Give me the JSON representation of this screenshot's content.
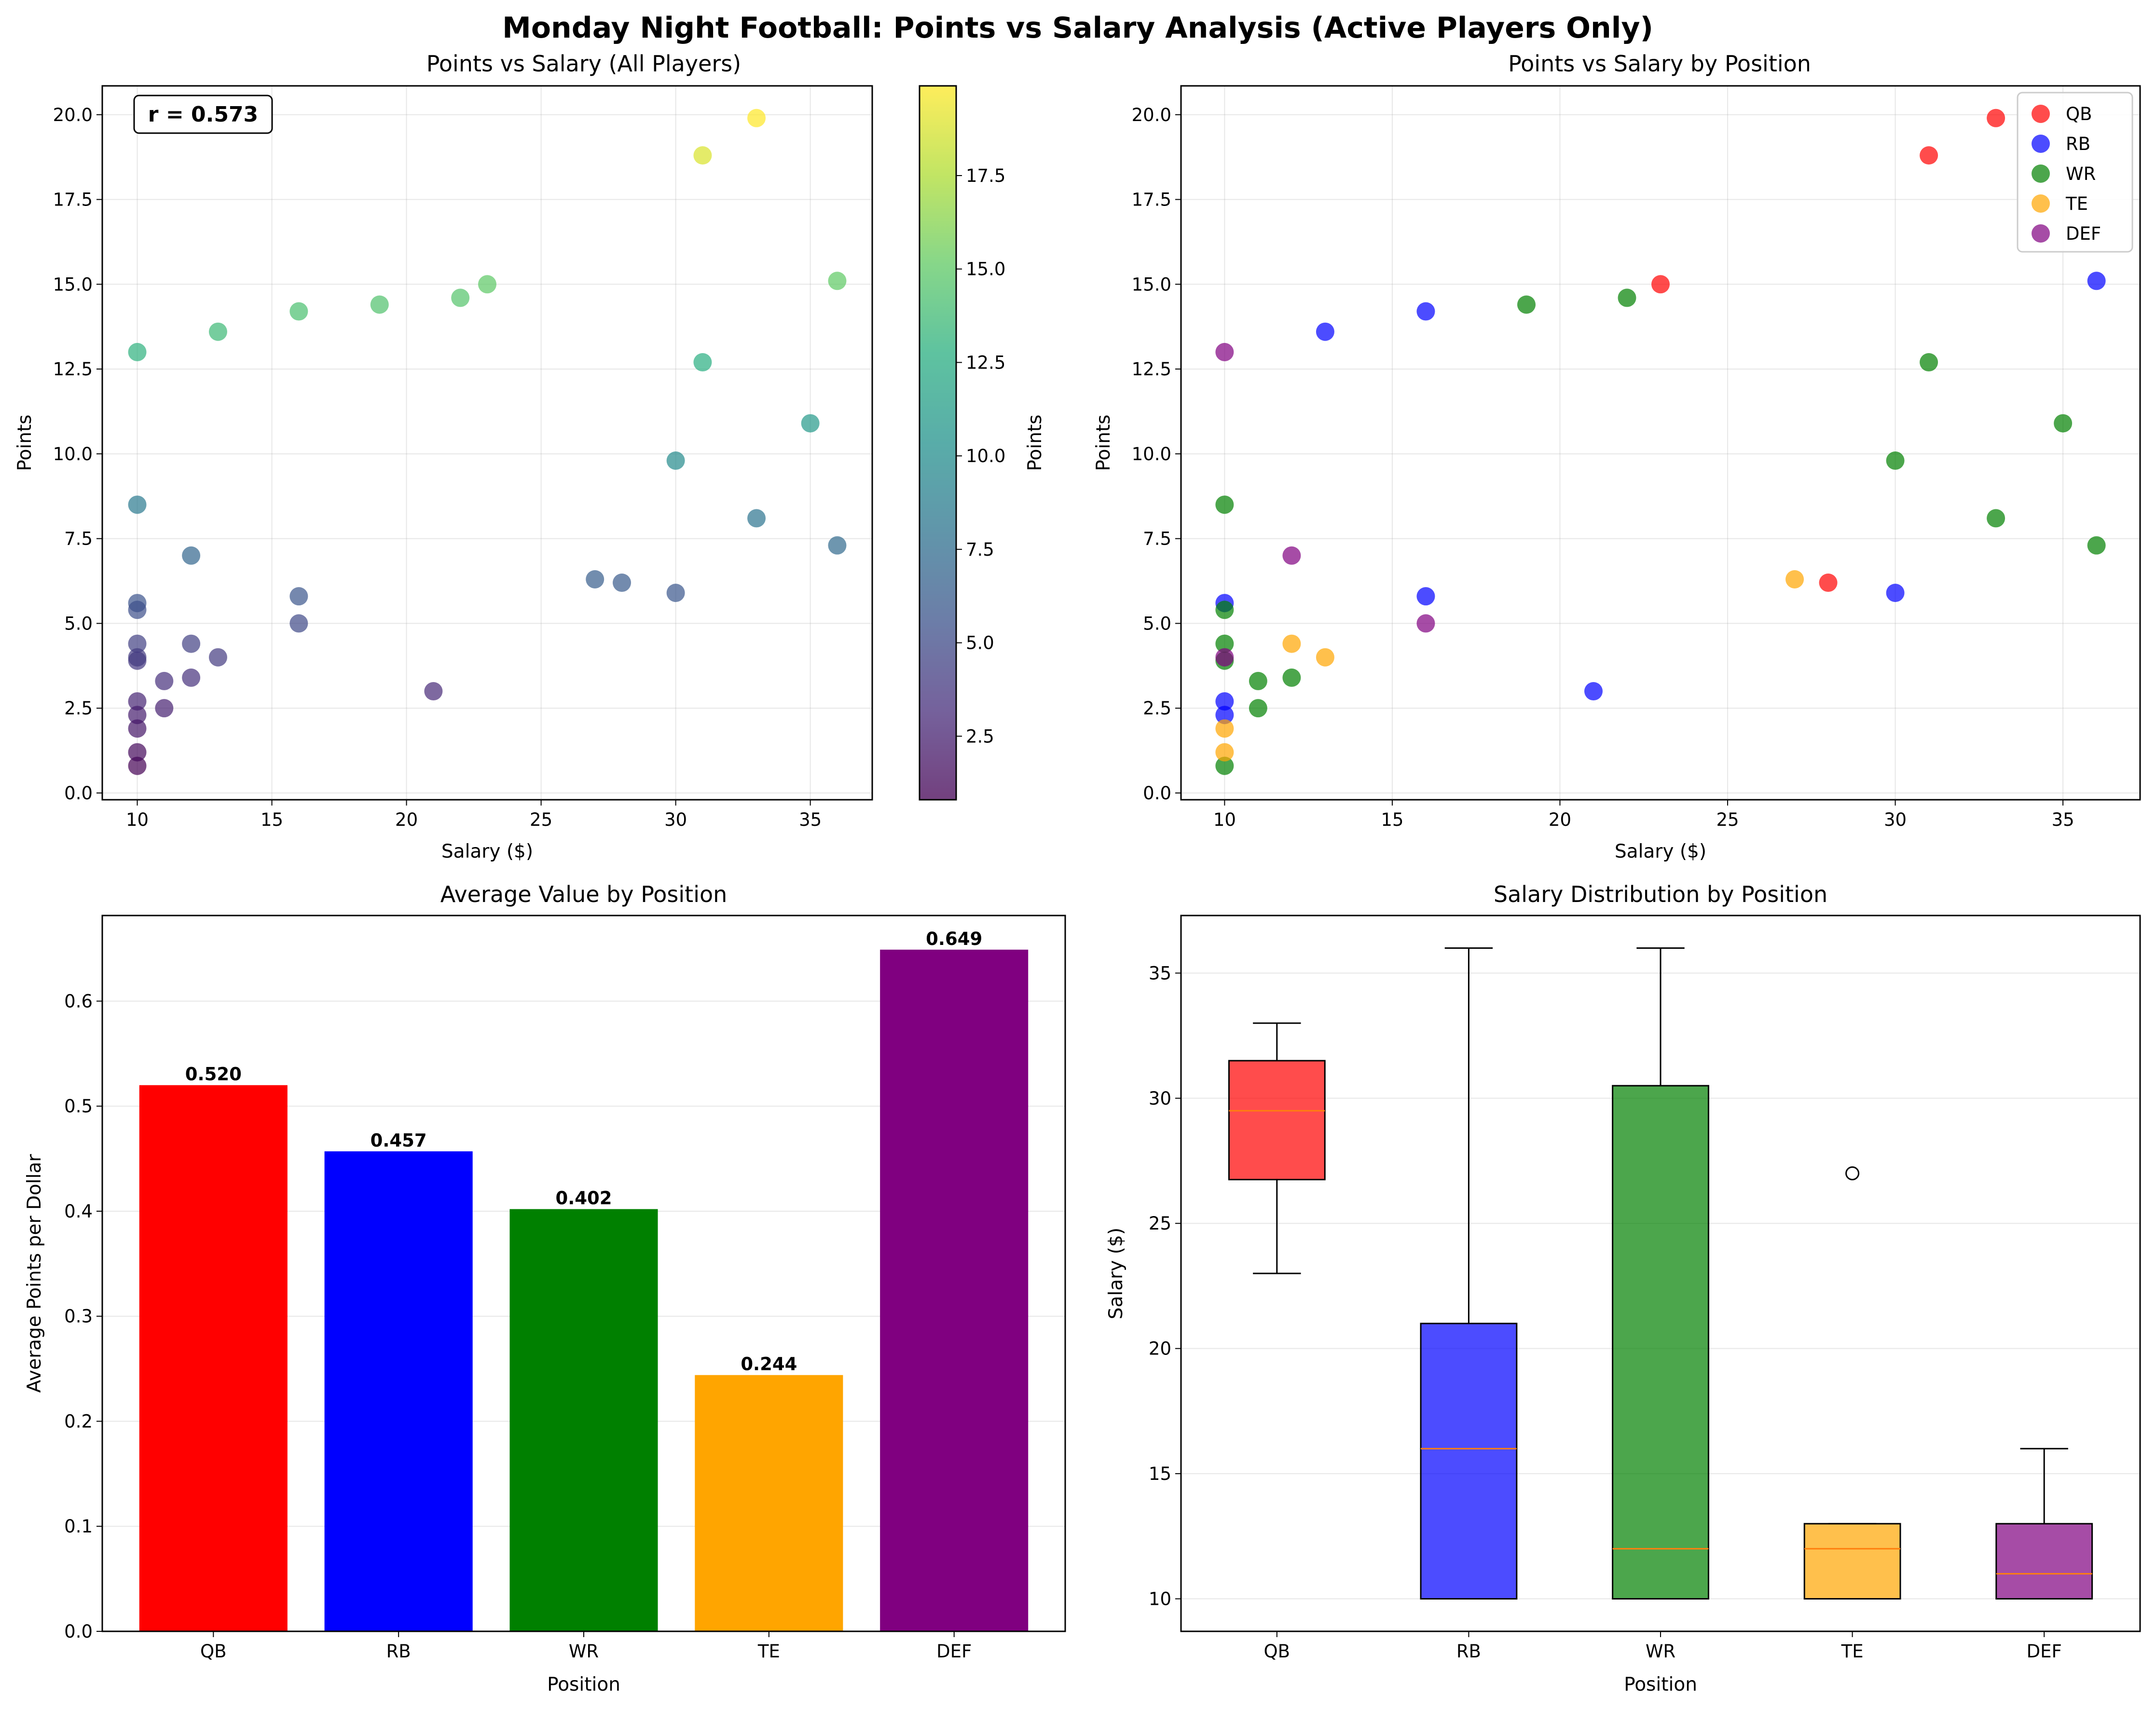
{
  "title": "Monday Night Football: Points vs Salary Analysis (Active Players Only)",
  "chart_data": [
    {
      "type": "scatter",
      "title": "Points vs Salary (All Players)",
      "xlabel": "Salary ($)",
      "ylabel": "Points",
      "xlim": [
        8.7,
        37.3
      ],
      "ylim": [
        -0.2,
        20.85
      ],
      "xticks": [
        10,
        15,
        20,
        25,
        30,
        35
      ],
      "yticks": [
        0.0,
        2.5,
        5.0,
        7.5,
        10.0,
        12.5,
        15.0,
        17.5,
        20.0
      ],
      "grid": true,
      "colormap": "viridis",
      "colorbar": {
        "label": "Points",
        "min": 0.8,
        "max": 19.9,
        "ticks": [
          2.5,
          5.0,
          7.5,
          10.0,
          12.5,
          15.0,
          17.5
        ]
      },
      "annotation": "r = 0.573",
      "points": [
        {
          "x": 23,
          "y": 15.0
        },
        {
          "x": 31,
          "y": 18.8
        },
        {
          "x": 33,
          "y": 19.9
        },
        {
          "x": 28,
          "y": 6.2
        },
        {
          "x": 13,
          "y": 13.6
        },
        {
          "x": 16,
          "y": 14.2
        },
        {
          "x": 36,
          "y": 15.1
        },
        {
          "x": 16,
          "y": 5.8
        },
        {
          "x": 30,
          "y": 5.9
        },
        {
          "x": 21,
          "y": 3.0
        },
        {
          "x": 10,
          "y": 5.6
        },
        {
          "x": 10,
          "y": 2.7
        },
        {
          "x": 10,
          "y": 2.3
        },
        {
          "x": 19,
          "y": 14.4
        },
        {
          "x": 22,
          "y": 14.6
        },
        {
          "x": 31,
          "y": 12.7
        },
        {
          "x": 35,
          "y": 10.9
        },
        {
          "x": 30,
          "y": 9.8
        },
        {
          "x": 33,
          "y": 8.1
        },
        {
          "x": 36,
          "y": 7.3
        },
        {
          "x": 10,
          "y": 8.5
        },
        {
          "x": 10,
          "y": 5.4
        },
        {
          "x": 10,
          "y": 4.4
        },
        {
          "x": 10,
          "y": 3.9
        },
        {
          "x": 11,
          "y": 3.3
        },
        {
          "x": 12,
          "y": 3.4
        },
        {
          "x": 11,
          "y": 2.5
        },
        {
          "x": 10,
          "y": 0.8
        },
        {
          "x": 27,
          "y": 6.3
        },
        {
          "x": 12,
          "y": 4.4
        },
        {
          "x": 13,
          "y": 4.0
        },
        {
          "x": 10,
          "y": 1.9
        },
        {
          "x": 10,
          "y": 1.2
        },
        {
          "x": 10,
          "y": 13.0
        },
        {
          "x": 12,
          "y": 7.0
        },
        {
          "x": 16,
          "y": 5.0
        },
        {
          "x": 10,
          "y": 4.0
        }
      ]
    },
    {
      "type": "scatter",
      "title": "Points vs Salary by Position",
      "xlabel": "Salary ($)",
      "ylabel": "Points",
      "xlim": [
        8.7,
        37.3
      ],
      "ylim": [
        -0.2,
        20.85
      ],
      "xticks": [
        10,
        15,
        20,
        25,
        30,
        35
      ],
      "yticks": [
        0.0,
        2.5,
        5.0,
        7.5,
        10.0,
        12.5,
        15.0,
        17.5,
        20.0
      ],
      "grid": true,
      "legend": "top-right",
      "series": [
        {
          "name": "QB",
          "color": "#ff0000",
          "points": [
            [
              23,
              15.0
            ],
            [
              31,
              18.8
            ],
            [
              33,
              19.9
            ],
            [
              28,
              6.2
            ]
          ]
        },
        {
          "name": "RB",
          "color": "#0000ff",
          "points": [
            [
              13,
              13.6
            ],
            [
              16,
              14.2
            ],
            [
              36,
              15.1
            ],
            [
              16,
              5.8
            ],
            [
              30,
              5.9
            ],
            [
              21,
              3.0
            ],
            [
              10,
              5.6
            ],
            [
              10,
              2.7
            ],
            [
              10,
              2.3
            ]
          ]
        },
        {
          "name": "WR",
          "color": "#008000",
          "points": [
            [
              19,
              14.4
            ],
            [
              22,
              14.6
            ],
            [
              31,
              12.7
            ],
            [
              35,
              10.9
            ],
            [
              30,
              9.8
            ],
            [
              33,
              8.1
            ],
            [
              36,
              7.3
            ],
            [
              10,
              8.5
            ],
            [
              10,
              5.4
            ],
            [
              10,
              4.4
            ],
            [
              10,
              3.9
            ],
            [
              11,
              3.3
            ],
            [
              12,
              3.4
            ],
            [
              11,
              2.5
            ],
            [
              10,
              0.8
            ]
          ]
        },
        {
          "name": "TE",
          "color": "#ffa500",
          "points": [
            [
              27,
              6.3
            ],
            [
              12,
              4.4
            ],
            [
              13,
              4.0
            ],
            [
              10,
              1.9
            ],
            [
              10,
              1.2
            ]
          ]
        },
        {
          "name": "DEF",
          "color": "#800080",
          "points": [
            [
              10,
              13.0
            ],
            [
              12,
              7.0
            ],
            [
              16,
              5.0
            ],
            [
              10,
              4.0
            ]
          ]
        }
      ]
    },
    {
      "type": "bar",
      "title": "Average Value by Position",
      "xlabel": "Position",
      "ylabel": "Average Points per Dollar",
      "categories": [
        "QB",
        "RB",
        "WR",
        "TE",
        "DEF"
      ],
      "values": [
        0.52,
        0.457,
        0.402,
        0.244,
        0.649
      ],
      "value_labels": [
        "0.520",
        "0.457",
        "0.402",
        "0.244",
        "0.649"
      ],
      "colors": [
        "#ff0000",
        "#0000ff",
        "#008000",
        "#ffa500",
        "#800080"
      ],
      "ylim": [
        0,
        0.6815
      ],
      "yticks": [
        0.0,
        0.1,
        0.2,
        0.3,
        0.4,
        0.5,
        0.6
      ],
      "grid": "y"
    },
    {
      "type": "box",
      "title": "Salary Distribution by Position",
      "xlabel": "Position",
      "ylabel": "Salary ($)",
      "ylim": [
        8.7,
        37.3
      ],
      "yticks": [
        10,
        15,
        20,
        25,
        30,
        35
      ],
      "grid": "y",
      "boxes": [
        {
          "name": "QB",
          "color": "#ff0000",
          "whisker_low": 23,
          "q1": 26.75,
          "median": 29.5,
          "q3": 31.5,
          "whisker_high": 33,
          "outliers": []
        },
        {
          "name": "RB",
          "color": "#0000ff",
          "whisker_low": 10,
          "q1": 10,
          "median": 16,
          "q3": 21,
          "whisker_high": 36,
          "outliers": []
        },
        {
          "name": "WR",
          "color": "#008000",
          "whisker_low": 10,
          "q1": 10,
          "median": 12,
          "q3": 30.5,
          "whisker_high": 36,
          "outliers": []
        },
        {
          "name": "TE",
          "color": "#ffa500",
          "whisker_low": 10,
          "q1": 10,
          "median": 12,
          "q3": 13,
          "whisker_high": 13,
          "outliers": [
            27
          ]
        },
        {
          "name": "DEF",
          "color": "#800080",
          "whisker_low": 10,
          "q1": 10,
          "median": 11,
          "q3": 13,
          "whisker_high": 16,
          "outliers": []
        }
      ]
    }
  ]
}
